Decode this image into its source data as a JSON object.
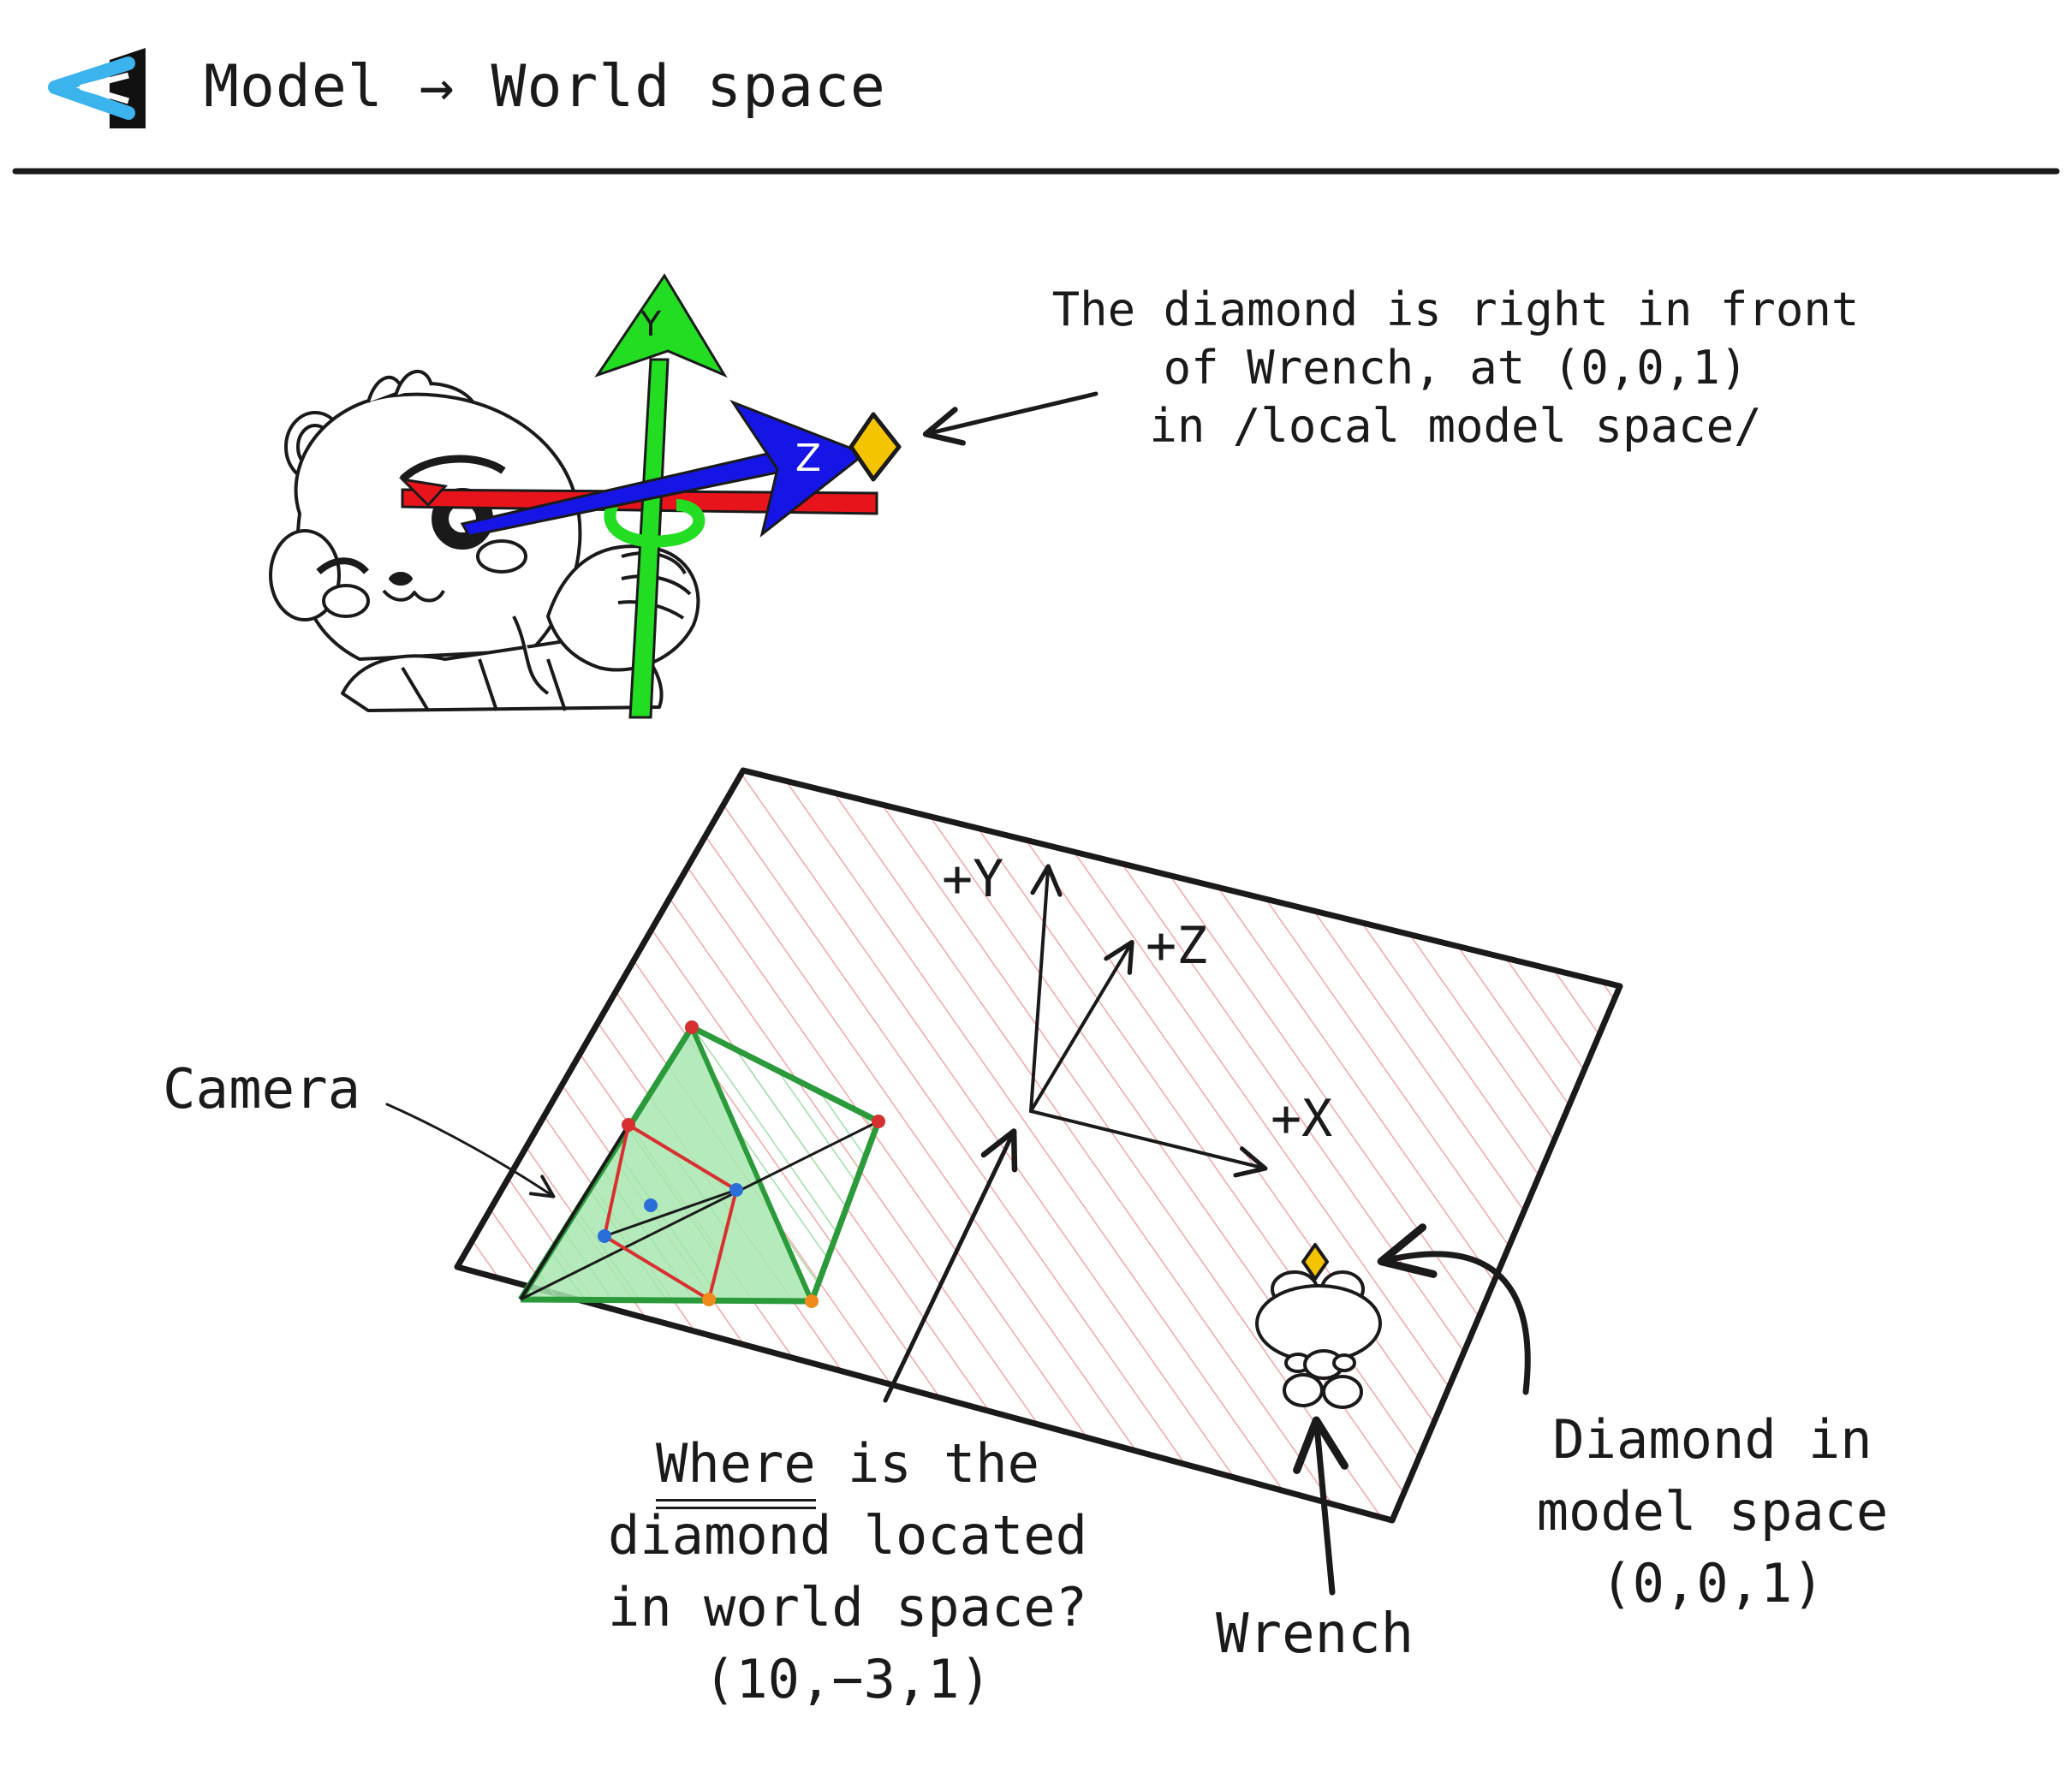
{
  "header": {
    "title": "Model → World space",
    "logo_icon": "back-arrow-logo-icon"
  },
  "colors": {
    "accent_blue": "#3bb4ee",
    "axis_x": "#e8141b",
    "axis_y": "#22dd22",
    "axis_z": "#1515e6",
    "diamond": "#f5c400",
    "grid_hatch": "#f4a6a6",
    "frustum_fill": "#a8e8b0",
    "frustum_edge": "#2a9a3a"
  },
  "top_figure": {
    "y_axis_label": "Y",
    "z_axis_label": "Z",
    "note_lines": [
      "The diamond is right in front",
      "of Wrench, at (0,0,1)",
      "in /local model space/"
    ]
  },
  "world": {
    "axis_labels": {
      "y": "+Y",
      "z": "+Z",
      "x": "+X"
    },
    "camera_label": "Camera",
    "question": {
      "emphasis": "Where",
      "line1_rest": " is the",
      "line2": "diamond located",
      "line3": "in world space?",
      "line4": "(10,−3,1)"
    },
    "wrench_label": "Wrench",
    "diamond_label_lines": [
      "Diamond in",
      "model space",
      "(0,0,1)"
    ]
  }
}
